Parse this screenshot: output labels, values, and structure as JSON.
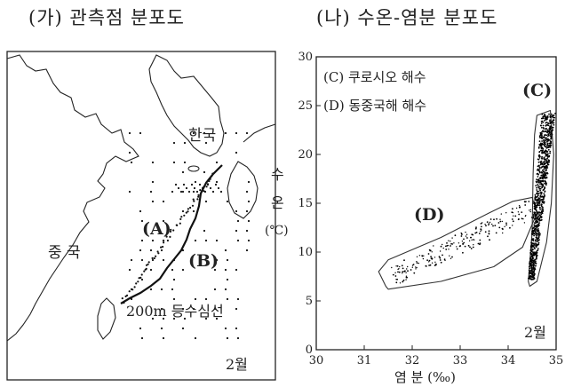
{
  "panel_a": {
    "title": "(가) 관측점 분포도",
    "label_korea": "한국",
    "label_china": "중 국",
    "label_region_a": "(A)",
    "label_region_b": "(B)",
    "label_isobath": "200m 등수심선",
    "month": "2월"
  },
  "panel_b": {
    "title": "(나) 수온-염분 분포도",
    "legend_c": "(C) 쿠로시오 해수",
    "legend_d": "(D) 동중국해 해수",
    "ylabel_1": "수",
    "ylabel_2": "온",
    "ylabel_3": "(℃)",
    "xlabel": "염 분 (‰)",
    "month": "2월"
  },
  "chart_data": {
    "type": "scatter",
    "title": "(나) 수온-염분 분포도",
    "xlabel": "염 분 (‰)",
    "ylabel": "수 온 (℃)",
    "xlim": [
      30,
      35
    ],
    "ylim": [
      0,
      30
    ],
    "x_ticks": [
      "30",
      "31",
      "32",
      "33",
      "34",
      "35"
    ],
    "y_ticks": [
      "0",
      "5",
      "10",
      "15",
      "20",
      "25",
      "30"
    ],
    "grid": false,
    "legend_position": "top-left",
    "series": [
      {
        "name": "(C) 쿠로시오 해수",
        "label": "(C)",
        "outline": [
          [
            34.42,
            7.0
          ],
          [
            34.5,
            12.0
          ],
          [
            34.52,
            18.0
          ],
          [
            34.55,
            22.0
          ],
          [
            34.6,
            24.0
          ],
          [
            34.88,
            24.5
          ],
          [
            34.95,
            20.0
          ],
          [
            34.9,
            15.0
          ],
          [
            34.8,
            11.0
          ],
          [
            34.6,
            7.0
          ],
          [
            34.45,
            6.5
          ]
        ],
        "points_range": {
          "salinity": [
            34.4,
            34.95
          ],
          "temperature": [
            7.0,
            24.5
          ]
        }
      },
      {
        "name": "(D) 동중국해 해수",
        "label": "(D)",
        "outline": [
          [
            31.45,
            6.5
          ],
          [
            31.3,
            8.0
          ],
          [
            31.5,
            9.2
          ],
          [
            32.6,
            11.5
          ],
          [
            33.6,
            14.0
          ],
          [
            34.1,
            15.2
          ],
          [
            34.5,
            15.6
          ],
          [
            34.6,
            14.0
          ],
          [
            34.3,
            10.5
          ],
          [
            33.7,
            8.5
          ],
          [
            32.6,
            7.0
          ],
          [
            31.5,
            6.2
          ]
        ],
        "points_range": {
          "salinity": [
            31.5,
            34.6
          ],
          "temperature": [
            7.0,
            15.5
          ]
        }
      }
    ]
  }
}
